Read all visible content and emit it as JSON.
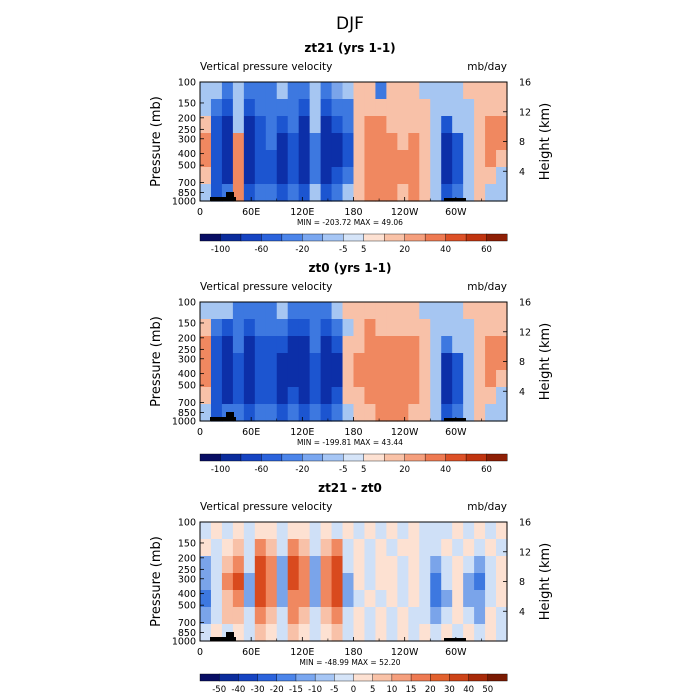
{
  "figure": {
    "title": "DJF"
  },
  "chart_data": [
    {
      "type": "heatmap",
      "title": "zt21 (yrs 1-1)",
      "subtitle_left": "Vertical pressure velocity",
      "subtitle_right": "mb/day",
      "ylabel_left": "Pressure (mb)",
      "ylabel_right": "Height (km)",
      "x_ticks": [
        "0",
        "60E",
        "120E",
        "180",
        "120W",
        "60W"
      ],
      "y_ticks_left": [
        "100",
        "150",
        "200",
        "250",
        "300",
        "400",
        "500",
        "700",
        "850",
        "1000"
      ],
      "y_ticks_right": [
        "4",
        "8",
        "12",
        "16"
      ],
      "min_max_label": "MIN = -203.72   MAX =  49.06",
      "min": -203.72,
      "max": 49.06,
      "colorbar_labels": [
        "-100",
        "-60",
        "-20",
        "-5",
        "5",
        "20",
        "40",
        "60"
      ],
      "colorbar_levels": [
        -120,
        -100,
        -80,
        -60,
        -40,
        -20,
        -10,
        -5,
        0,
        5,
        10,
        20,
        30,
        40,
        50,
        60
      ],
      "cells": [
        [
          "L",
          "L",
          "M",
          "L",
          "M",
          "M",
          "M",
          "L",
          "M",
          "M",
          "L",
          "M",
          "m",
          "L",
          "W",
          "W",
          "M",
          "W",
          "W",
          "W",
          "L",
          "L",
          "L",
          "L",
          "W",
          "W",
          "W",
          "W"
        ],
        [
          "L",
          "M",
          "H",
          "L",
          "H",
          "M",
          "M",
          "M",
          "M",
          "H",
          "L",
          "H",
          "M",
          "M",
          "W",
          "W",
          "W",
          "W",
          "W",
          "W",
          "W",
          "L",
          "L",
          "L",
          "L",
          "W",
          "W",
          "W"
        ],
        [
          "W",
          "H",
          "S",
          "L",
          "S",
          "H",
          "M",
          "H",
          "M",
          "S",
          "L",
          "S",
          "H",
          "M",
          "W",
          "O",
          "O",
          "W",
          "W",
          "W",
          "W",
          "L",
          "H",
          "L",
          "L",
          "W",
          "O",
          "O"
        ],
        [
          "O",
          "H",
          "S",
          "O",
          "S",
          "H",
          "M",
          "S",
          "H",
          "S",
          "M",
          "S",
          "S",
          "H",
          "W",
          "O",
          "O",
          "O",
          "W",
          "O",
          "W",
          "L",
          "S",
          "H",
          "L",
          "W",
          "O",
          "O"
        ],
        [
          "O",
          "H",
          "S",
          "O",
          "S",
          "H",
          "H",
          "S",
          "H",
          "S",
          "M",
          "S",
          "S",
          "H",
          "W",
          "O",
          "O",
          "O",
          "O",
          "O",
          "W",
          "L",
          "S",
          "H",
          "L",
          "W",
          "O",
          "W"
        ],
        [
          "W",
          "H",
          "S",
          "O",
          "S",
          "H",
          "H",
          "S",
          "H",
          "S",
          "M",
          "S",
          "H",
          "M",
          "W",
          "O",
          "O",
          "O",
          "O",
          "O",
          "W",
          "L",
          "S",
          "H",
          "L",
          "W",
          "W",
          "L"
        ],
        [
          "L",
          "H",
          "M",
          "O",
          "H",
          "M",
          "M",
          "H",
          "M",
          "H",
          "L",
          "H",
          "M",
          "L",
          "W",
          "O",
          "O",
          "O",
          "W",
          "O",
          "W",
          "L",
          "H",
          "M",
          "L",
          "W",
          "L",
          "L"
        ]
      ]
    },
    {
      "type": "heatmap",
      "title": "zt0 (yrs 1-1)",
      "subtitle_left": "Vertical pressure velocity",
      "subtitle_right": "mb/day",
      "ylabel_left": "Pressure (mb)",
      "ylabel_right": "Height (km)",
      "x_ticks": [
        "0",
        "60E",
        "120E",
        "180",
        "120W",
        "60W"
      ],
      "y_ticks_left": [
        "100",
        "150",
        "200",
        "250",
        "300",
        "400",
        "500",
        "700",
        "850",
        "1000"
      ],
      "y_ticks_right": [
        "4",
        "8",
        "12",
        "16"
      ],
      "min_max_label": "MIN = -199.81   MAX =  43.44",
      "min": -199.81,
      "max": 43.44,
      "colorbar_labels": [
        "-100",
        "-60",
        "-20",
        "-5",
        "5",
        "20",
        "40",
        "60"
      ],
      "colorbar_levels": [
        -120,
        -100,
        -80,
        -60,
        -40,
        -20,
        -10,
        -5,
        0,
        5,
        10,
        20,
        30,
        40,
        50,
        60
      ],
      "cells": [
        [
          "L",
          "L",
          "L",
          "M",
          "M",
          "M",
          "M",
          "L",
          "M",
          "M",
          "M",
          "M",
          "L",
          "W",
          "W",
          "W",
          "W",
          "W",
          "W",
          "W",
          "L",
          "L",
          "L",
          "L",
          "W",
          "W",
          "W",
          "W"
        ],
        [
          "W",
          "M",
          "H",
          "M",
          "H",
          "M",
          "M",
          "M",
          "H",
          "H",
          "M",
          "H",
          "M",
          "L",
          "W",
          "O",
          "W",
          "W",
          "W",
          "W",
          "W",
          "L",
          "L",
          "L",
          "L",
          "W",
          "W",
          "W"
        ],
        [
          "O",
          "H",
          "S",
          "M",
          "S",
          "H",
          "H",
          "H",
          "S",
          "S",
          "M",
          "S",
          "H",
          "W",
          "W",
          "O",
          "O",
          "O",
          "O",
          "O",
          "W",
          "L",
          "M",
          "L",
          "L",
          "W",
          "O",
          "O"
        ],
        [
          "O",
          "H",
          "S",
          "H",
          "S",
          "H",
          "H",
          "S",
          "S",
          "S",
          "H",
          "S",
          "S",
          "W",
          "O",
          "O",
          "O",
          "O",
          "O",
          "O",
          "W",
          "L",
          "S",
          "H",
          "L",
          "W",
          "O",
          "O"
        ],
        [
          "O",
          "H",
          "S",
          "H",
          "S",
          "H",
          "H",
          "S",
          "S",
          "S",
          "H",
          "S",
          "S",
          "W",
          "O",
          "O",
          "O",
          "O",
          "O",
          "O",
          "W",
          "L",
          "S",
          "H",
          "L",
          "W",
          "O",
          "W"
        ],
        [
          "W",
          "H",
          "S",
          "H",
          "S",
          "H",
          "H",
          "S",
          "H",
          "S",
          "H",
          "S",
          "H",
          "W",
          "W",
          "O",
          "O",
          "O",
          "O",
          "O",
          "W",
          "L",
          "S",
          "H",
          "L",
          "W",
          "W",
          "L"
        ],
        [
          "L",
          "H",
          "M",
          "M",
          "H",
          "M",
          "M",
          "H",
          "M",
          "H",
          "M",
          "H",
          "M",
          "L",
          "W",
          "W",
          "O",
          "O",
          "O",
          "W",
          "W",
          "L",
          "H",
          "M",
          "L",
          "W",
          "L",
          "L"
        ]
      ]
    },
    {
      "type": "heatmap",
      "title": "zt21 - zt0",
      "subtitle_left": "Vertical pressure velocity",
      "subtitle_right": "mb/day",
      "ylabel_left": "Pressure (mb)",
      "ylabel_right": "Height (km)",
      "x_ticks": [
        "0",
        "60E",
        "120E",
        "180",
        "120W",
        "60W"
      ],
      "y_ticks_left": [
        "100",
        "150",
        "200",
        "250",
        "300",
        "400",
        "500",
        "700",
        "850",
        "1000"
      ],
      "y_ticks_right": [
        "4",
        "8",
        "12",
        "16"
      ],
      "min_max_label": "MIN = -48.99   MAX =  52.20",
      "min": -48.99,
      "max": 52.2,
      "colorbar_labels": [
        "-50",
        "-40",
        "-30",
        "-20",
        "-15",
        "-10",
        "-5",
        "0",
        "5",
        "10",
        "15",
        "20",
        "30",
        "40",
        "50"
      ],
      "colorbar_levels": [
        -60,
        -50,
        -40,
        -30,
        -20,
        -15,
        -10,
        -5,
        0,
        5,
        10,
        15,
        20,
        30,
        40,
        50,
        60
      ],
      "cells": [
        [
          "l",
          "w",
          "l",
          "w",
          "l",
          "w",
          "w",
          "l",
          "w",
          "w",
          "l",
          "w",
          "l",
          "w",
          "l",
          "w",
          "l",
          "w",
          "l",
          "w",
          "l",
          "l",
          "l",
          "w",
          "l",
          "w",
          "l",
          "w"
        ],
        [
          "w",
          "l",
          "w",
          "W",
          "l",
          "O",
          "W",
          "l",
          "O",
          "W",
          "l",
          "W",
          "O",
          "l",
          "w",
          "l",
          "w",
          "l",
          "w",
          "w",
          "l",
          "l",
          "w",
          "l",
          "w",
          "l",
          "w",
          "l"
        ],
        [
          "m",
          "l",
          "W",
          "O",
          "l",
          "R",
          "O",
          "m",
          "R",
          "O",
          "m",
          "O",
          "R",
          "l",
          "w",
          "l",
          "w",
          "w",
          "l",
          "w",
          "l",
          "m",
          "l",
          "w",
          "l",
          "m",
          "l",
          "w"
        ],
        [
          "m",
          "l",
          "O",
          "R",
          "m",
          "R",
          "O",
          "m",
          "R",
          "O",
          "m",
          "O",
          "R",
          "m",
          "w",
          "l",
          "w",
          "w",
          "l",
          "w",
          "l",
          "M",
          "l",
          "w",
          "m",
          "M",
          "l",
          "w"
        ],
        [
          "M",
          "l",
          "W",
          "O",
          "m",
          "R",
          "O",
          "m",
          "O",
          "O",
          "m",
          "O",
          "R",
          "m",
          "l",
          "w",
          "l",
          "w",
          "l",
          "w",
          "l",
          "M",
          "m",
          "w",
          "m",
          "m",
          "l",
          "w"
        ],
        [
          "m",
          "l",
          "W",
          "W",
          "l",
          "O",
          "W",
          "l",
          "O",
          "W",
          "l",
          "W",
          "O",
          "l",
          "w",
          "l",
          "w",
          "l",
          "w",
          "l",
          "l",
          "m",
          "l",
          "w",
          "l",
          "m",
          "w",
          "l"
        ],
        [
          "l",
          "w",
          "l",
          "w",
          "l",
          "W",
          "w",
          "l",
          "W",
          "w",
          "l",
          "w",
          "W",
          "l",
          "w",
          "l",
          "w",
          "l",
          "w",
          "l",
          "w",
          "l",
          "w",
          "l",
          "w",
          "l",
          "w",
          "l"
        ]
      ]
    }
  ]
}
